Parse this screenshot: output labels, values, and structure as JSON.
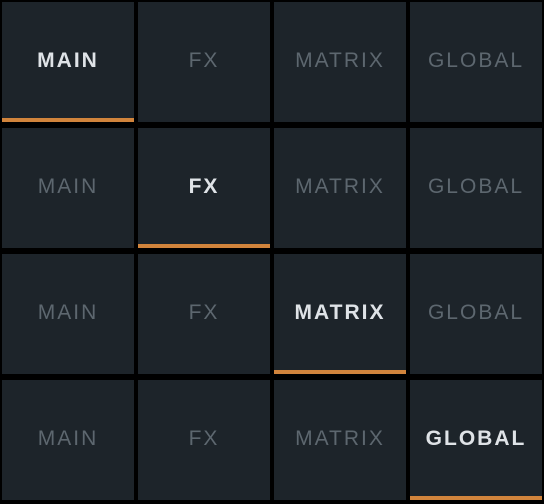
{
  "colors": {
    "background": "#000000",
    "tab_background": "#1d242a",
    "label_inactive": "#5d676f",
    "label_active": "#dfe3e7",
    "accent_underline": "#d1843c"
  },
  "tab_bars": [
    {
      "active_index": 0,
      "tabs": [
        {
          "label": "MAIN"
        },
        {
          "label": "FX"
        },
        {
          "label": "MATRIX"
        },
        {
          "label": "GLOBAL"
        }
      ]
    },
    {
      "active_index": 1,
      "tabs": [
        {
          "label": "MAIN"
        },
        {
          "label": "FX"
        },
        {
          "label": "MATRIX"
        },
        {
          "label": "GLOBAL"
        }
      ]
    },
    {
      "active_index": 2,
      "tabs": [
        {
          "label": "MAIN"
        },
        {
          "label": "FX"
        },
        {
          "label": "MATRIX"
        },
        {
          "label": "GLOBAL"
        }
      ]
    },
    {
      "active_index": 3,
      "tabs": [
        {
          "label": "MAIN"
        },
        {
          "label": "FX"
        },
        {
          "label": "MATRIX"
        },
        {
          "label": "GLOBAL"
        }
      ]
    }
  ]
}
